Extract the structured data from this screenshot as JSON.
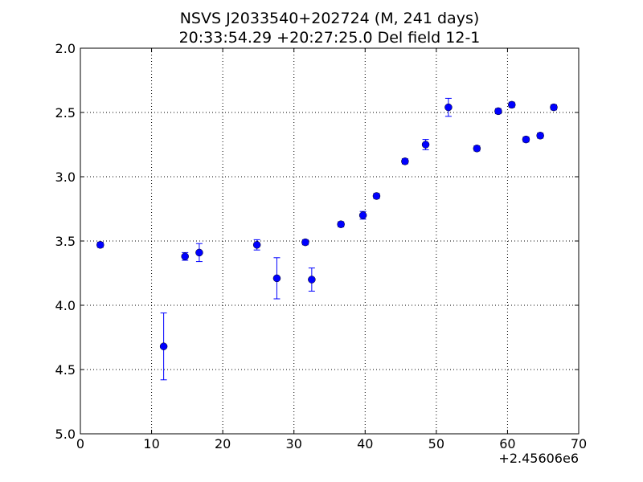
{
  "chart_data": {
    "type": "scatter",
    "title": "NSVS J2033540+202724 (M, 241 days)",
    "subtitle": "20:33:54.29 +20:27:25.0 Del field 12-1",
    "xlabel": "",
    "ylabel": "",
    "x_offset_label": "+2.45606e6",
    "xlim": [
      0,
      70
    ],
    "ylim": [
      5.0,
      2.0
    ],
    "y_inverted": true,
    "grid": true,
    "x_ticks": [
      0,
      10,
      20,
      30,
      40,
      50,
      60,
      70
    ],
    "x_tick_labels": [
      "0",
      "10",
      "20",
      "30",
      "40",
      "50",
      "60",
      "70"
    ],
    "y_ticks": [
      2.0,
      2.5,
      3.0,
      3.5,
      4.0,
      4.5,
      5.0
    ],
    "y_tick_labels": [
      "2.0",
      "2.5",
      "3.0",
      "3.5",
      "4.0",
      "4.5",
      "5.0"
    ],
    "marker_color": "#0000ff",
    "points": [
      {
        "x": 2.8,
        "y": 3.53,
        "err": 0.02
      },
      {
        "x": 11.7,
        "y": 4.32,
        "err": 0.26
      },
      {
        "x": 14.7,
        "y": 3.62,
        "err": 0.03
      },
      {
        "x": 16.7,
        "y": 3.59,
        "err": 0.07
      },
      {
        "x": 24.8,
        "y": 3.53,
        "err": 0.04
      },
      {
        "x": 27.6,
        "y": 3.79,
        "err": 0.16
      },
      {
        "x": 31.6,
        "y": 3.51,
        "err": 0.02
      },
      {
        "x": 32.5,
        "y": 3.8,
        "err": 0.09
      },
      {
        "x": 36.6,
        "y": 3.37,
        "err": 0.02
      },
      {
        "x": 39.7,
        "y": 3.3,
        "err": 0.03
      },
      {
        "x": 41.6,
        "y": 3.15,
        "err": 0.02
      },
      {
        "x": 45.6,
        "y": 2.88,
        "err": 0.02
      },
      {
        "x": 48.5,
        "y": 2.75,
        "err": 0.04
      },
      {
        "x": 51.7,
        "y": 2.46,
        "err": 0.07
      },
      {
        "x": 55.7,
        "y": 2.78,
        "err": 0.02
      },
      {
        "x": 58.7,
        "y": 2.49,
        "err": 0.02
      },
      {
        "x": 60.6,
        "y": 2.44,
        "err": 0.02
      },
      {
        "x": 62.6,
        "y": 2.71,
        "err": 0.02
      },
      {
        "x": 64.6,
        "y": 2.68,
        "err": 0.02
      },
      {
        "x": 66.5,
        "y": 2.46,
        "err": 0.02
      }
    ]
  }
}
